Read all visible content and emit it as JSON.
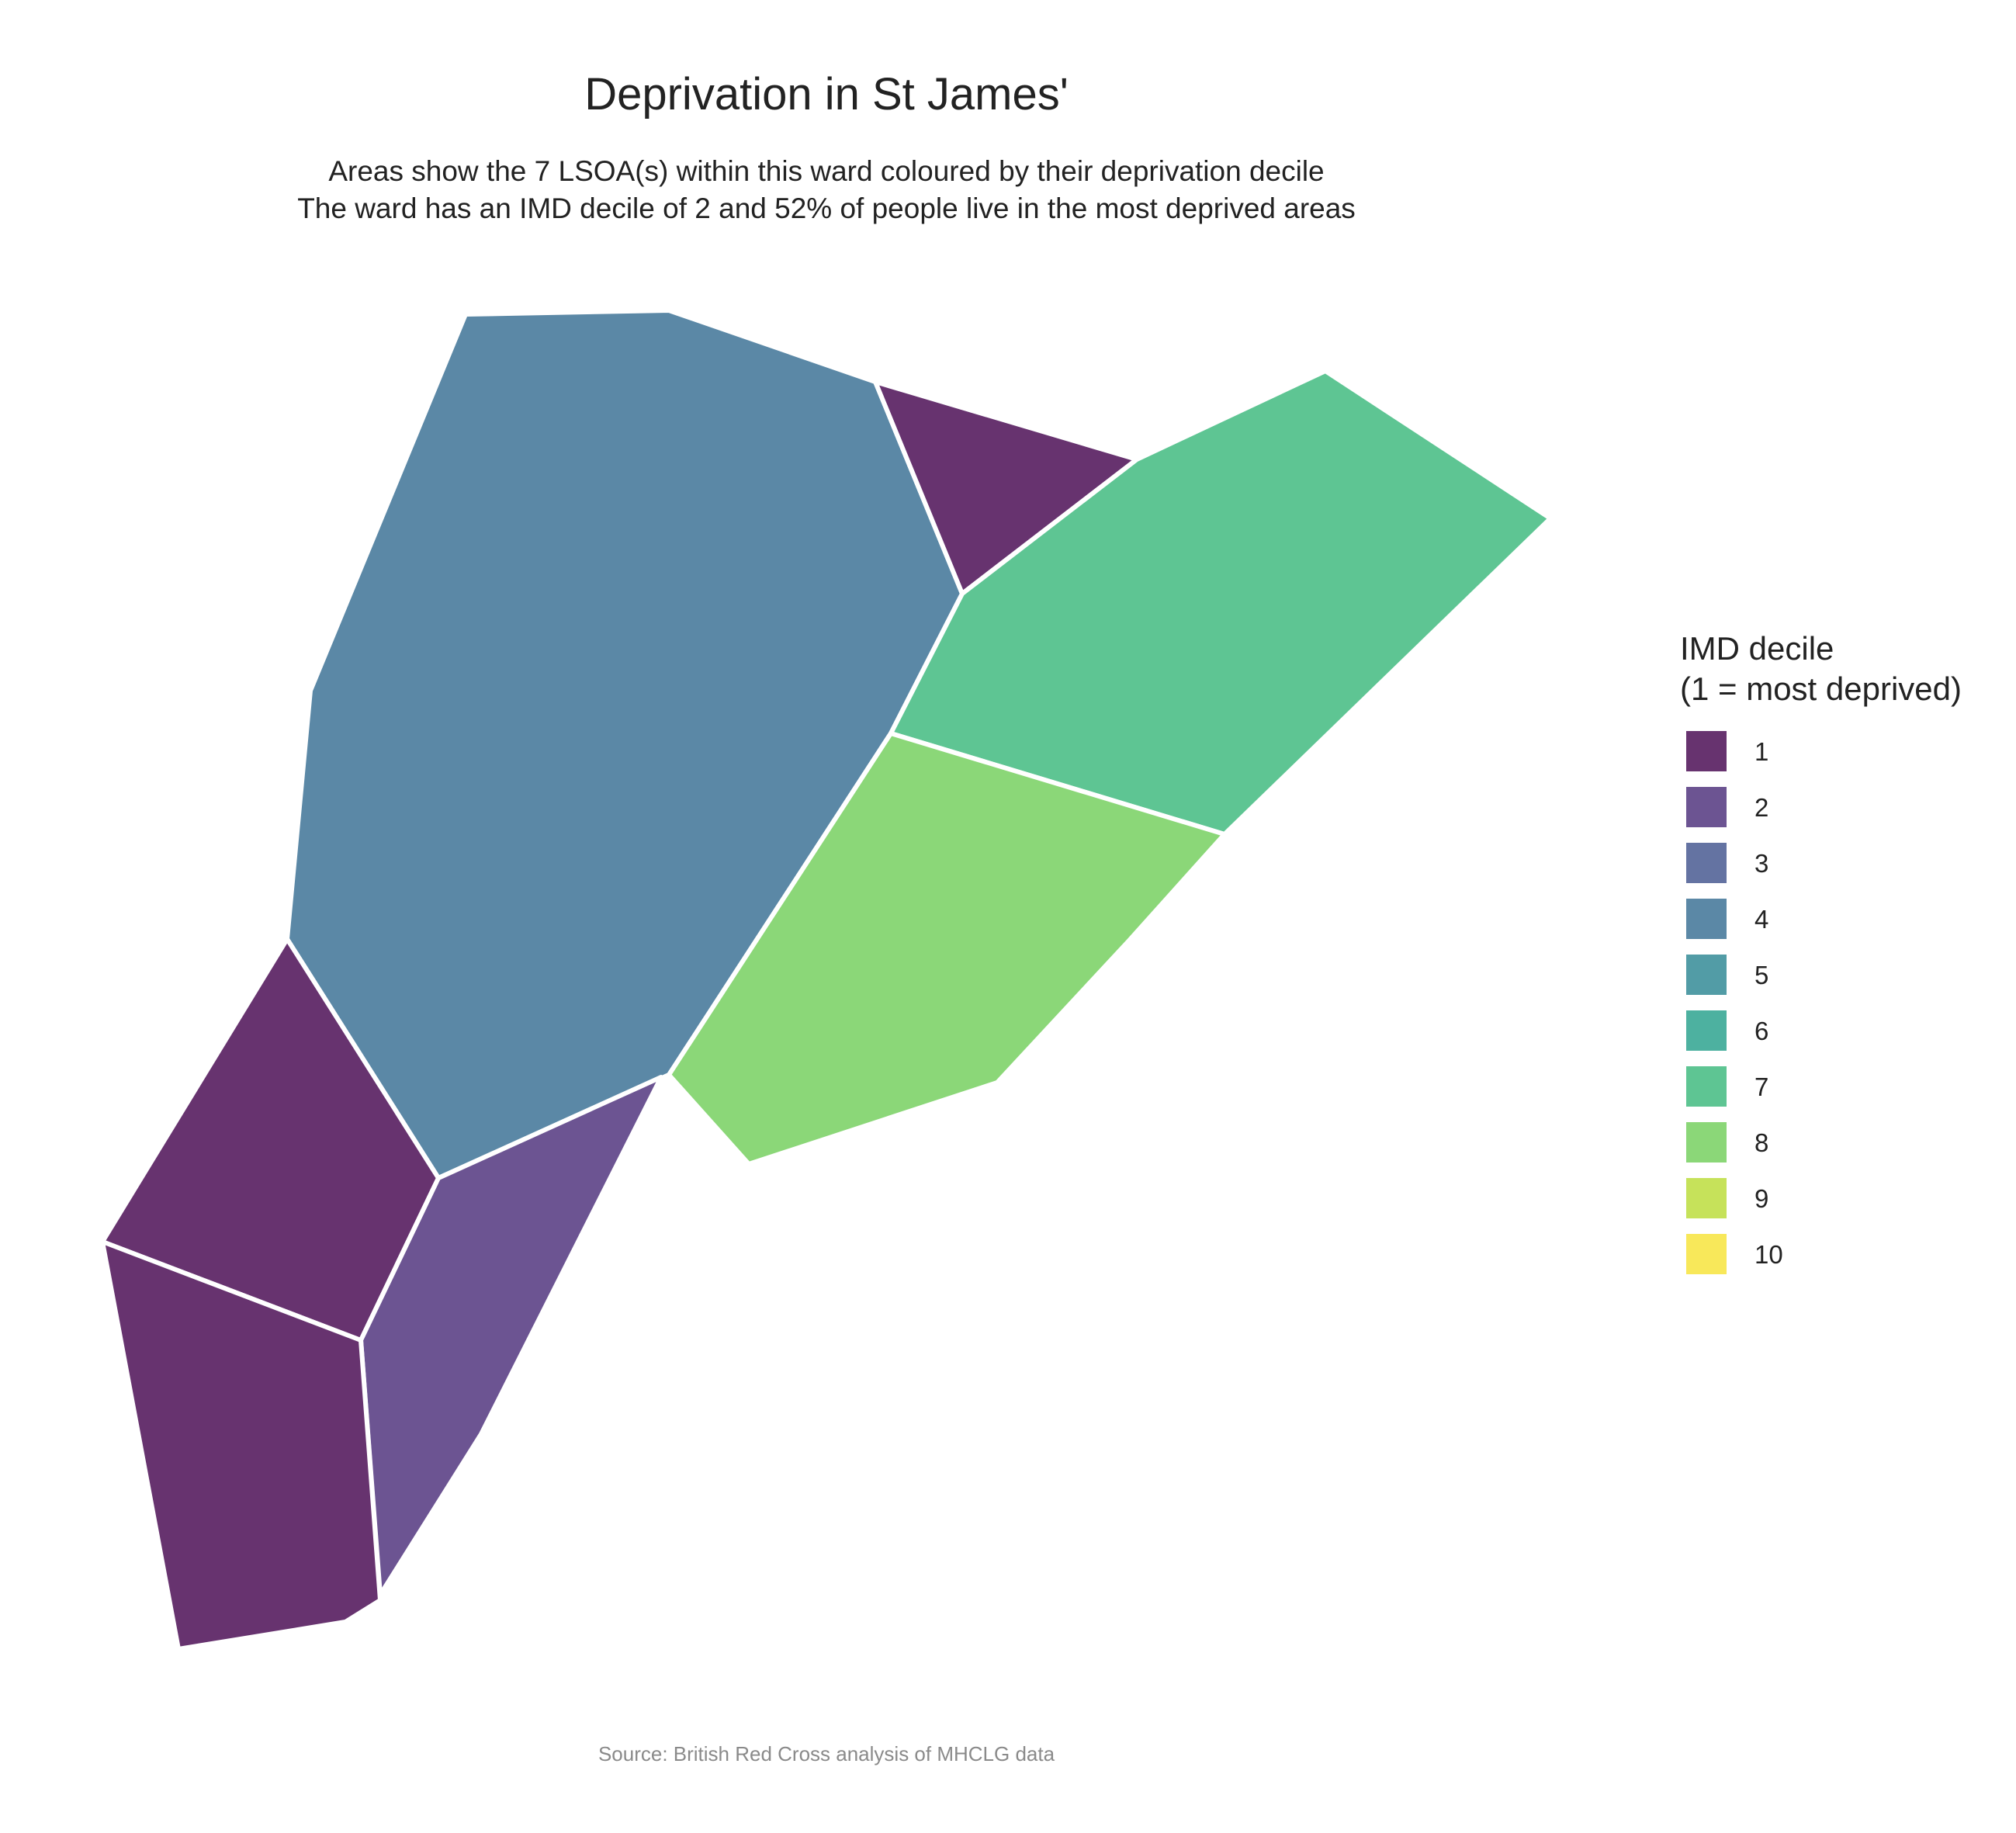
{
  "title": "Deprivation in St James'",
  "subtitle": [
    "Areas show the 7 LSOA(s) within this ward coloured by their deprivation decile",
    "The ward has an IMD decile of 2 and 52% of people live in the most deprived areas"
  ],
  "legend": {
    "title_line1": "IMD decile",
    "title_line2": "(1 = most deprived)",
    "items": [
      {
        "label": "1",
        "color": "#67336F"
      },
      {
        "label": "2",
        "color": "#6C5492"
      },
      {
        "label": "3",
        "color": "#6473A2"
      },
      {
        "label": "4",
        "color": "#5B88A6"
      },
      {
        "label": "5",
        "color": "#529CA6"
      },
      {
        "label": "6",
        "color": "#4DB1A0"
      },
      {
        "label": "7",
        "color": "#5EC593"
      },
      {
        "label": "8",
        "color": "#8BD778"
      },
      {
        "label": "9",
        "color": "#C6E25A"
      },
      {
        "label": "10",
        "color": "#F8E85A"
      }
    ]
  },
  "areas": [
    {
      "decile": 4,
      "color": "#5B88A6"
    },
    {
      "decile": 1,
      "color": "#67336F"
    },
    {
      "decile": 7,
      "color": "#5EC593"
    },
    {
      "decile": 8,
      "color": "#8BD778"
    },
    {
      "decile": 1,
      "color": "#67336F"
    },
    {
      "decile": 2,
      "color": "#6C5492"
    },
    {
      "decile": 1,
      "color": "#67336F"
    }
  ],
  "caption": "Source: British Red Cross analysis of MHCLG data"
}
